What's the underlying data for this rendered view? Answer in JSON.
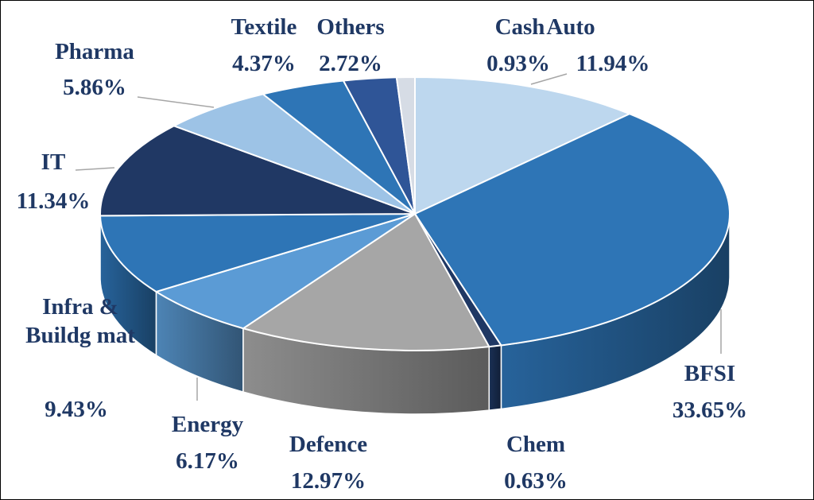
{
  "chart_data": {
    "type": "pie",
    "style": "3d",
    "title": "",
    "legend": "none",
    "categories": [
      "Auto",
      "BFSI",
      "Chem",
      "Defence",
      "Energy",
      "Infra & Buildg mat",
      "IT",
      "Pharma",
      "Textile",
      "Others",
      "Cash"
    ],
    "values": [
      11.94,
      33.65,
      0.63,
      12.97,
      6.17,
      9.43,
      11.34,
      5.86,
      4.37,
      2.72,
      0.93
    ],
    "value_labels": [
      "11.94%",
      "33.65%",
      "0.63%",
      "12.97%",
      "6.17%",
      "9.43%",
      "11.34%",
      "5.86%",
      "4.37%",
      "2.72%",
      "0.93%"
    ],
    "label_lines": [
      [
        "Auto"
      ],
      [
        "BFSI"
      ],
      [
        "Chem"
      ],
      [
        "Defence"
      ],
      [
        "Energy"
      ],
      [
        "Infra &",
        "Buildg mat"
      ],
      [
        "IT"
      ],
      [
        "Pharma"
      ],
      [
        "Textile"
      ],
      [
        "Others"
      ],
      [
        "Cash"
      ]
    ],
    "colors": [
      "#bdd7ee",
      "#2e75b6",
      "#1f3864",
      "#a6a6a6",
      "#5b9bd5",
      "#2e75b6",
      "#203864",
      "#9dc3e6",
      "#2e75b6",
      "#2f5597",
      "#d6dce5"
    ],
    "label_color": "#1f3864"
  }
}
